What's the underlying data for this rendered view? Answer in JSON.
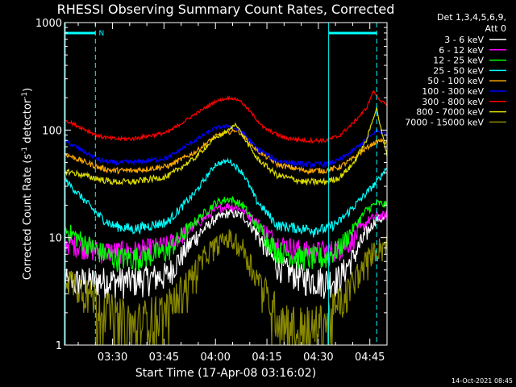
{
  "chart_data": {
    "type": "line",
    "title": "RHESSI Observing Summary Count Rates, Corrected",
    "xlabel": "Start Time (17-Apr-08 03:16:02)",
    "ylabel_main": "Corrected Count Rate (s",
    "ylabel_sup1": "-1",
    "ylabel_mid": " detector",
    "ylabel_sup2": "-1",
    "ylabel_end": ")",
    "y_scale": "log",
    "ylim": [
      1,
      1000
    ],
    "xlim_minutes": [
      0,
      94
    ],
    "x_ticks": [
      {
        "minute": 14,
        "label": "03:30"
      },
      {
        "minute": 29,
        "label": "03:45"
      },
      {
        "minute": 44,
        "label": "04:00"
      },
      {
        "minute": 59,
        "label": "04:15"
      },
      {
        "minute": 74,
        "label": "04:30"
      },
      {
        "minute": 89,
        "label": "04:45"
      }
    ],
    "y_ticks": [
      {
        "value": 1,
        "label": "1"
      },
      {
        "value": 10,
        "label": "10"
      },
      {
        "value": 100,
        "label": "100"
      },
      {
        "value": 1000,
        "label": "1000"
      }
    ],
    "legend": {
      "header1": "Det 1,3,4,5,6,9,",
      "header2": "Att 0",
      "placement": "right"
    },
    "annotations": {
      "night_marker": "N",
      "timestamp": "14-Oct-2021 08:45"
    },
    "series": [
      {
        "name": "3 - 6 keV",
        "color": "#ffffff",
        "x": [
          0,
          10,
          14,
          20,
          30,
          38,
          44,
          48,
          52,
          56,
          62,
          70,
          76,
          80,
          84,
          88,
          91,
          94
        ],
        "values": [
          3.8,
          4.0,
          4.0,
          4.0,
          4.5,
          10,
          15,
          17,
          16,
          11,
          5.5,
          4.2,
          4.0,
          4.2,
          6.5,
          11,
          15,
          15
        ]
      },
      {
        "name": "6 - 12 keV",
        "color": "#ff00ff",
        "x": [
          0,
          10,
          14,
          20,
          30,
          38,
          44,
          48,
          52,
          56,
          62,
          70,
          76,
          80,
          84,
          88,
          91,
          94
        ],
        "values": [
          9,
          7.5,
          7.5,
          7.5,
          8.5,
          13,
          18,
          20,
          18,
          14,
          9,
          7.5,
          7.5,
          7.8,
          9.5,
          14,
          16,
          16
        ]
      },
      {
        "name": "12 - 25 keV",
        "color": "#00ff00",
        "x": [
          0,
          10,
          14,
          20,
          30,
          38,
          44,
          48,
          52,
          56,
          62,
          70,
          76,
          80,
          84,
          88,
          91,
          94
        ],
        "values": [
          12,
          7.5,
          6.5,
          6.5,
          7.5,
          14,
          21,
          23,
          20,
          13,
          7.5,
          6.5,
          6.5,
          8,
          12,
          18,
          21,
          20
        ]
      },
      {
        "name": "25 - 50 keV",
        "color": "#00ffff",
        "x": [
          0,
          10,
          14,
          20,
          30,
          38,
          44,
          48,
          52,
          56,
          62,
          70,
          76,
          80,
          84,
          88,
          91,
          94
        ],
        "values": [
          35,
          16,
          13,
          12,
          14,
          26,
          48,
          52,
          40,
          22,
          13,
          12,
          12,
          14,
          19,
          26,
          33,
          45
        ]
      },
      {
        "name": "50 - 100 keV",
        "color": "#ffaa00",
        "x": [
          0,
          10,
          14,
          20,
          30,
          38,
          44,
          48,
          50,
          52,
          56,
          62,
          70,
          76,
          80,
          84,
          88,
          90,
          92,
          94
        ],
        "values": [
          60,
          45,
          42,
          42,
          46,
          62,
          88,
          95,
          100,
          90,
          65,
          48,
          42,
          42,
          45,
          54,
          68,
          75,
          80,
          75
        ]
      },
      {
        "name": "100 - 300 keV",
        "color": "#0000ff",
        "x": [
          0,
          10,
          14,
          20,
          30,
          38,
          44,
          48,
          52,
          56,
          62,
          70,
          76,
          80,
          84,
          88,
          91,
          94
        ],
        "values": [
          80,
          53,
          50,
          50,
          55,
          80,
          105,
          110,
          95,
          68,
          52,
          48,
          48,
          52,
          64,
          82,
          98,
          92
        ]
      },
      {
        "name": "300 - 800 keV",
        "color": "#ff0000",
        "x": [
          0,
          10,
          14,
          20,
          30,
          38,
          44,
          48,
          51,
          54,
          58,
          64,
          70,
          76,
          80,
          84,
          88,
          90,
          92,
          94
        ],
        "values": [
          125,
          88,
          83,
          83,
          95,
          140,
          185,
          200,
          190,
          150,
          105,
          85,
          80,
          80,
          88,
          115,
          160,
          230,
          190,
          170
        ]
      },
      {
        "name": "800 - 7000 keV",
        "color": "#dddd00",
        "x": [
          0,
          10,
          14,
          20,
          30,
          38,
          44,
          48,
          50,
          52,
          56,
          62,
          70,
          76,
          80,
          84,
          88,
          90,
          91,
          92,
          94
        ],
        "values": [
          42,
          35,
          33,
          33,
          37,
          55,
          85,
          100,
          115,
          88,
          55,
          38,
          33,
          33,
          36,
          48,
          80,
          130,
          160,
          110,
          60
        ]
      },
      {
        "name": "7000 - 15000 keV",
        "color": "#888800",
        "x": [
          0,
          8,
          14,
          20,
          30,
          36,
          42,
          46,
          48,
          52,
          56,
          62,
          68,
          74,
          78,
          82,
          86,
          90,
          94
        ],
        "values": [
          4.5,
          3.0,
          2.0,
          1.6,
          2.2,
          4.0,
          7.5,
          9.5,
          10,
          8,
          4.5,
          2.0,
          1.5,
          1.5,
          2.0,
          3.0,
          5.0,
          7.5,
          9
        ]
      }
    ]
  }
}
